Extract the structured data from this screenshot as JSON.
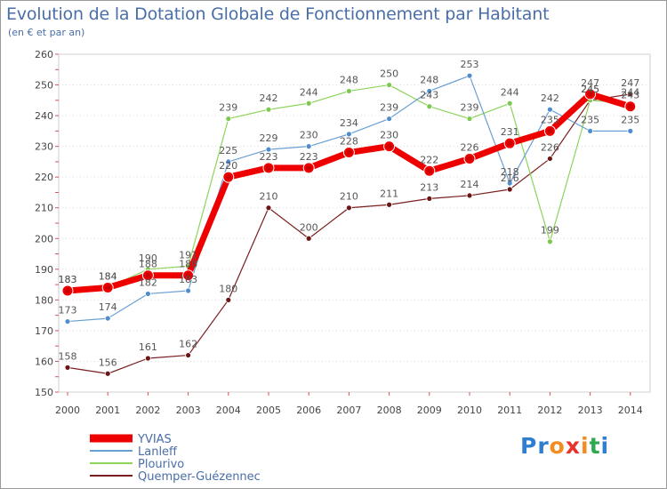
{
  "title": "Evolution de la Dotation Globale de Fonctionnement par Habitant",
  "subtitle": "(en € et par an)",
  "brand": {
    "text": "Proxiti"
  },
  "chart_data": {
    "type": "line",
    "title": "Evolution de la Dotation Globale de Fonctionnement par Habitant",
    "subtitle": "(en € et par an)",
    "xlabel": "",
    "ylabel": "",
    "ylim": [
      150,
      260
    ],
    "yticks": [
      150,
      160,
      170,
      180,
      190,
      200,
      210,
      220,
      230,
      240,
      250,
      260
    ],
    "x": [
      "2000",
      "2001",
      "2002",
      "2003",
      "2004",
      "2005",
      "2006",
      "2007",
      "2008",
      "2009",
      "2010",
      "2011",
      "2012",
      "2013",
      "2014"
    ],
    "grid": "horizontal dotted",
    "legend_position": "bottom-left",
    "series": [
      {
        "name": "Quemper-Guézennec",
        "color": "#7a1f1f",
        "dot": "#6b1515",
        "width": 1.2,
        "radius": 3,
        "values": [
          158,
          156,
          161,
          162,
          180,
          210,
          200,
          210,
          211,
          213,
          214,
          216,
          226,
          245,
          247
        ]
      },
      {
        "name": "Plourivo",
        "color": "#8cd45a",
        "dot": "#7ec850",
        "width": 1.2,
        "radius": 3,
        "values": [
          183,
          184,
          190,
          191,
          239,
          242,
          244,
          248,
          250,
          243,
          239,
          244,
          199,
          245,
          244
        ]
      },
      {
        "name": "Lanleff",
        "color": "#6a9fd4",
        "dot": "#4f8dcf",
        "width": 1.2,
        "radius": 3,
        "values": [
          173,
          174,
          182,
          183,
          225,
          229,
          230,
          234,
          239,
          248,
          253,
          218,
          242,
          235,
          235
        ]
      },
      {
        "name": "YVIAS",
        "color": "#ee0000",
        "dot": "#ee0000",
        "width": 7,
        "radius": 6,
        "values": [
          183,
          184,
          188,
          188,
          220,
          223,
          223,
          228,
          230,
          222,
          226,
          231,
          235,
          247,
          243
        ]
      }
    ],
    "legend_order": [
      "YVIAS",
      "Lanleff",
      "Plourivo",
      "Quemper-Guézennec"
    ]
  }
}
